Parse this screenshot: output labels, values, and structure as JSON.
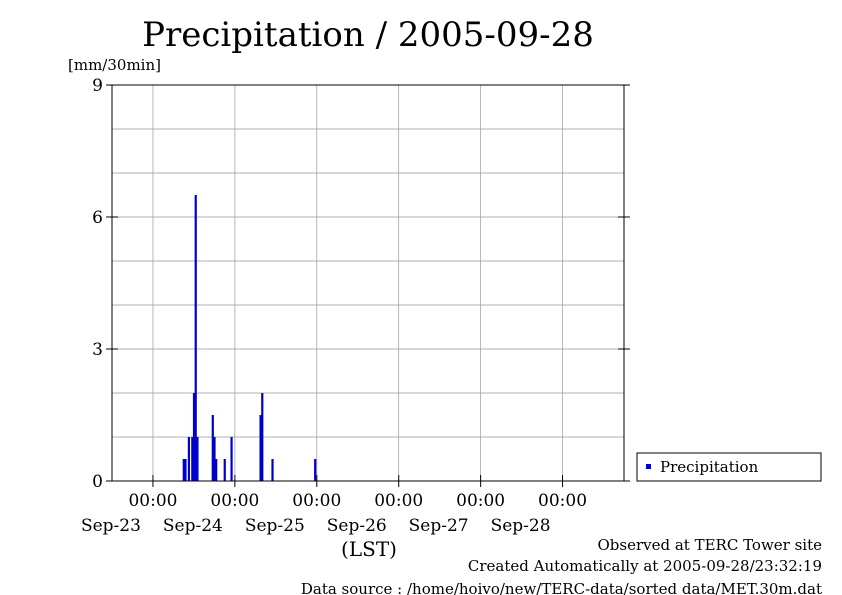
{
  "chart_data": {
    "type": "bar",
    "title": "Precipitation / 2005-09-28",
    "ylabel": "[mm/30min]",
    "xlabel": "(LST)",
    "ylim": [
      0,
      9
    ],
    "yticks": [
      0,
      3,
      6,
      9
    ],
    "x_range": [
      "2005-09-22T12:00",
      "2005-09-28T18:00"
    ],
    "xticks": [
      {
        "x": "2005-09-23T00:00",
        "time": "00:00",
        "date": "Sep-23"
      },
      {
        "x": "2005-09-24T00:00",
        "time": "00:00",
        "date": "Sep-24"
      },
      {
        "x": "2005-09-25T00:00",
        "time": "00:00",
        "date": "Sep-25"
      },
      {
        "x": "2005-09-26T00:00",
        "time": "00:00",
        "date": "Sep-26"
      },
      {
        "x": "2005-09-27T00:00",
        "time": "00:00",
        "date": "Sep-27"
      },
      {
        "x": "2005-09-28T00:00",
        "time": "00:00",
        "date": "Sep-28"
      }
    ],
    "grid": true,
    "legend_position": "bottom-right",
    "series": [
      {
        "name": "Precipitation",
        "color": "#0000cc",
        "points": [
          {
            "x": "2005-09-23T09:00",
            "y": 0.5
          },
          {
            "x": "2005-09-23T09:30",
            "y": 0.5
          },
          {
            "x": "2005-09-23T10:30",
            "y": 1.0
          },
          {
            "x": "2005-09-23T11:30",
            "y": 1.0
          },
          {
            "x": "2005-09-23T12:00",
            "y": 2.0
          },
          {
            "x": "2005-09-23T12:30",
            "y": 6.5
          },
          {
            "x": "2005-09-23T13:00",
            "y": 1.0
          },
          {
            "x": "2005-09-23T17:30",
            "y": 1.5
          },
          {
            "x": "2005-09-23T18:00",
            "y": 1.0
          },
          {
            "x": "2005-09-23T18:30",
            "y": 0.5
          },
          {
            "x": "2005-09-23T21:00",
            "y": 0.5
          },
          {
            "x": "2005-09-23T23:00",
            "y": 1.0
          },
          {
            "x": "2005-09-24T23:30",
            "y": 0.5
          },
          {
            "x": "2005-09-24T07:30",
            "y": 1.5
          },
          {
            "x": "2005-09-24T08:00",
            "y": 2.0
          },
          {
            "x": "2005-09-24T11:00",
            "y": 0.5
          }
        ]
      }
    ]
  },
  "footer": {
    "observed": "Observed at TERC Tower site",
    "created": "Created Automatically at 2005-09-28/23:32:19",
    "source": "Data source : /home/hoivo/new/TERC-data/sorted  data/MET.30m.dat"
  }
}
